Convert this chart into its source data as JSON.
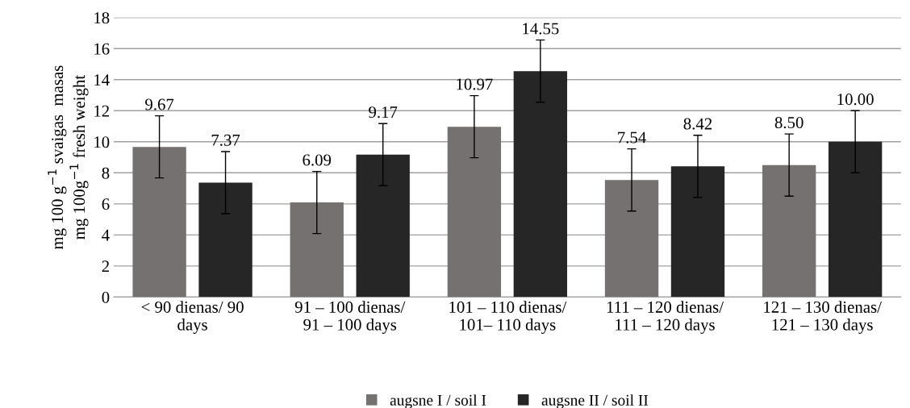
{
  "chart_data": {
    "type": "bar",
    "ylabel": "mg 100 g$^{−1}$ svaigas  masas\nmg 100g$^{−1}$ fresh weight",
    "categories": [
      "< 90 dienas/ 90\ndays",
      "91 – 100 dienas/\n91 – 100 days",
      "101 – 110 dienas/\n101– 110 days",
      "111 – 120 dienas/\n111 – 120 days",
      "121 – 130 dienas/\n121 – 130 days"
    ],
    "series": [
      {
        "name": "augsne I / soil I",
        "color": "#767171",
        "values": [
          9.67,
          6.09,
          10.97,
          7.54,
          8.5
        ],
        "value_labels": [
          "9.67",
          "6.09",
          "10.97",
          "7.54",
          "8.50"
        ],
        "errors": [
          2,
          2,
          2,
          2,
          2
        ]
      },
      {
        "name": "augsne II / soil II",
        "color": "#262626",
        "values": [
          7.37,
          9.17,
          14.55,
          8.42,
          10.0
        ],
        "value_labels": [
          "7.37",
          "9.17",
          "14.55",
          "8.42",
          "10.00"
        ],
        "errors": [
          2,
          2,
          2,
          2,
          2
        ]
      }
    ],
    "ylim": [
      0,
      18
    ],
    "yticks": [
      0,
      2,
      4,
      6,
      8,
      10,
      12,
      14,
      16,
      18
    ],
    "grid": "y",
    "legend": "bottom"
  }
}
